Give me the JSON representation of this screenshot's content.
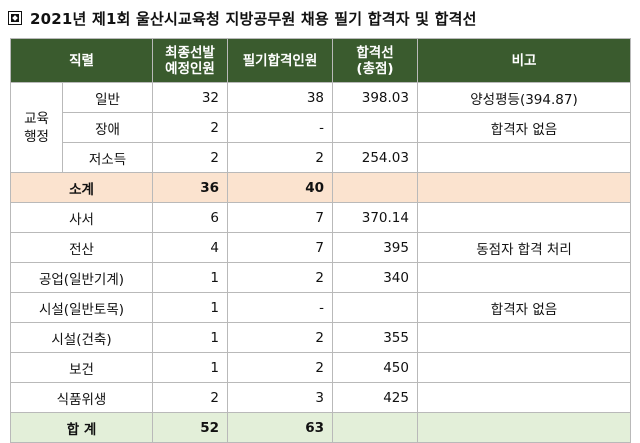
{
  "title": "2021년 제1회 울산시교육청 지방공무원 채용 필기 합격자 및 합격선",
  "headers": {
    "job": "직렬",
    "planned": "최종선발\n예정인원",
    "passed": "필기합격인원",
    "cutoff": "합격선\n(총점)",
    "note": "비고"
  },
  "group_label": "교육\n행정",
  "rows": [
    {
      "name": "일반",
      "planned": "32",
      "passed": "38",
      "cutoff": "398.03",
      "note": "양성평등(394.87)"
    },
    {
      "name": "장애",
      "planned": "2",
      "passed": "-",
      "cutoff": "",
      "note": "합격자 없음"
    },
    {
      "name": "저소득",
      "planned": "2",
      "passed": "2",
      "cutoff": "254.03",
      "note": ""
    },
    {
      "name": "소계",
      "planned": "36",
      "passed": "40",
      "cutoff": "",
      "note": ""
    },
    {
      "name": "사서",
      "planned": "6",
      "passed": "7",
      "cutoff": "370.14",
      "note": ""
    },
    {
      "name": "전산",
      "planned": "4",
      "passed": "7",
      "cutoff": "395",
      "note": "동점자 합격 처리"
    },
    {
      "name": "공업(일반기계)",
      "planned": "1",
      "passed": "2",
      "cutoff": "340",
      "note": ""
    },
    {
      "name": "시설(일반토목)",
      "planned": "1",
      "passed": "-",
      "cutoff": "",
      "note": "합격자 없음"
    },
    {
      "name": "시설(건축)",
      "planned": "1",
      "passed": "2",
      "cutoff": "355",
      "note": ""
    },
    {
      "name": "보건",
      "planned": "1",
      "passed": "2",
      "cutoff": "450",
      "note": ""
    },
    {
      "name": "식품위생",
      "planned": "2",
      "passed": "3",
      "cutoff": "425",
      "note": ""
    },
    {
      "name": "합 계",
      "planned": "52",
      "passed": "63",
      "cutoff": "",
      "note": ""
    }
  ],
  "colors": {
    "header_bg": "#3a5b2e",
    "subtotal_bg": "#fbe3cf",
    "total_bg": "#e3efd9"
  }
}
